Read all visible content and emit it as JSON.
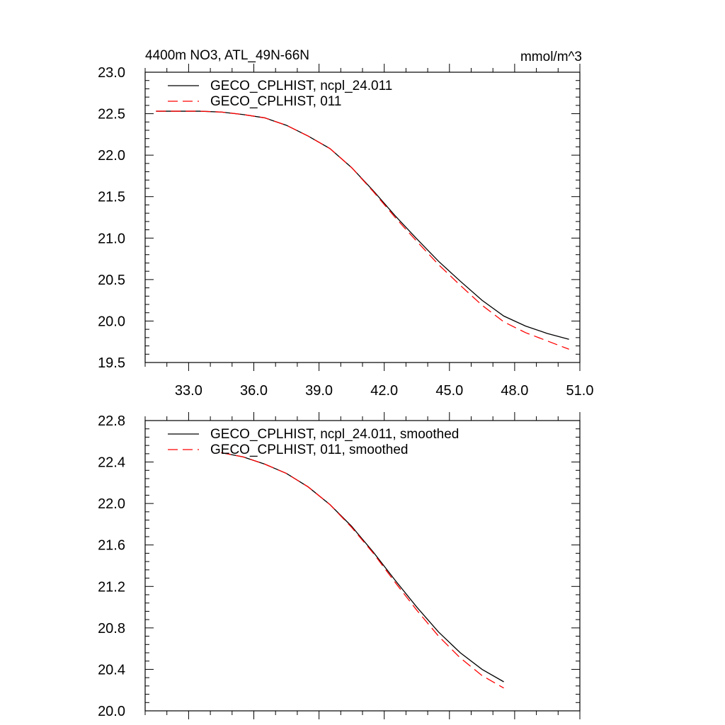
{
  "chart_data": [
    {
      "type": "line",
      "title": "4400m NO3, ATL_49N-66N",
      "units": "mmol/m^3",
      "xlim": [
        31.0,
        51.0
      ],
      "ylim": [
        19.5,
        23.0
      ],
      "xticks": [
        33.0,
        36.0,
        39.0,
        42.0,
        45.0,
        48.0,
        51.0
      ],
      "xtick_labels": [
        "33.0",
        "36.0",
        "39.0",
        "42.0",
        "45.0",
        "48.0",
        "51.0"
      ],
      "yticks": [
        19.5,
        20.0,
        20.5,
        21.0,
        21.5,
        22.0,
        22.5,
        23.0
      ],
      "ytick_labels": [
        "19.5",
        "20.0",
        "20.5",
        "21.0",
        "21.5",
        "22.0",
        "22.5",
        "23.0"
      ],
      "legend_position": "top-left",
      "grid": false,
      "series": [
        {
          "name": "GECO_CPLHIST, ncpl_24.011",
          "color": "#000000",
          "dash": "solid",
          "x": [
            31.5,
            32.5,
            33.5,
            34.5,
            35.5,
            36.5,
            37.5,
            38.5,
            39.5,
            40.5,
            41.5,
            42.5,
            43.5,
            44.5,
            45.5,
            46.5,
            47.5,
            48.5,
            49.5,
            50.5
          ],
          "y": [
            22.53,
            22.53,
            22.53,
            22.52,
            22.49,
            22.45,
            22.36,
            22.23,
            22.08,
            21.85,
            21.57,
            21.27,
            20.99,
            20.72,
            20.48,
            20.25,
            20.06,
            19.94,
            19.85,
            19.78
          ]
        },
        {
          "name": "GECO_CPLHIST, 011",
          "color": "#ff0000",
          "dash": "dashed",
          "x": [
            31.5,
            32.5,
            33.5,
            34.5,
            35.5,
            36.5,
            37.5,
            38.5,
            39.5,
            40.5,
            41.5,
            42.5,
            43.5,
            44.5,
            45.5,
            46.5,
            47.5,
            48.5,
            49.5,
            50.5
          ],
          "y": [
            22.53,
            22.53,
            22.53,
            22.52,
            22.49,
            22.45,
            22.36,
            22.23,
            22.08,
            21.85,
            21.56,
            21.25,
            20.96,
            20.68,
            20.43,
            20.19,
            19.99,
            19.86,
            19.76,
            19.66
          ]
        }
      ]
    },
    {
      "type": "line",
      "xlim": [
        31.0,
        51.0
      ],
      "ylim": [
        20.0,
        22.8
      ],
      "yticks": [
        20.0,
        20.4,
        20.8,
        21.2,
        21.6,
        22.0,
        22.4,
        22.8
      ],
      "ytick_labels": [
        "20.0",
        "20.4",
        "20.8",
        "21.2",
        "21.6",
        "22.0",
        "22.4",
        "22.8"
      ],
      "xticks": [
        33.0,
        36.0,
        39.0,
        42.0,
        45.0,
        48.0,
        51.0
      ],
      "legend_position": "top-left",
      "grid": false,
      "series": [
        {
          "name": "GECO_CPLHIST, ncpl_24.011, smoothed",
          "color": "#000000",
          "dash": "solid",
          "x": [
            34.5,
            35.5,
            36.5,
            37.5,
            38.5,
            39.5,
            40.5,
            41.5,
            42.5,
            43.5,
            44.5,
            45.5,
            46.5,
            47.5
          ],
          "y": [
            22.49,
            22.45,
            22.38,
            22.29,
            22.16,
            21.99,
            21.78,
            21.53,
            21.26,
            21.0,
            20.76,
            20.56,
            20.4,
            20.28
          ]
        },
        {
          "name": "GECO_CPLHIST, 011, smoothed",
          "color": "#ff0000",
          "dash": "dashed",
          "x": [
            34.5,
            35.5,
            36.5,
            37.5,
            38.5,
            39.5,
            40.5,
            41.5,
            42.5,
            43.5,
            44.5,
            45.5,
            46.5,
            47.5
          ],
          "y": [
            22.49,
            22.45,
            22.38,
            22.29,
            22.16,
            21.99,
            21.77,
            21.52,
            21.24,
            20.97,
            20.72,
            20.51,
            20.34,
            20.22
          ]
        }
      ]
    }
  ]
}
